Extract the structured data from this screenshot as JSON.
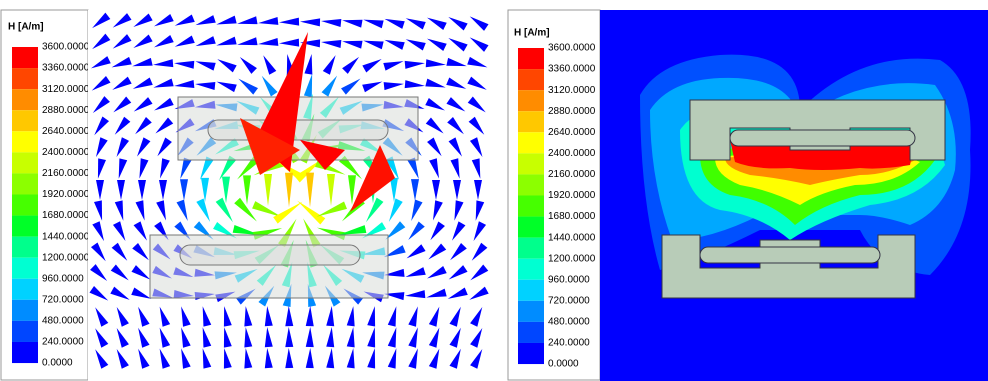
{
  "panels": [
    {
      "legend": {
        "title": "H [A/m]",
        "labels": [
          "3600.0000",
          "3360.0000",
          "3120.0000",
          "2880.0000",
          "2640.0000",
          "2400.0000",
          "2160.0000",
          "1920.0000",
          "1680.0000",
          "1440.0000",
          "1200.0000",
          "960.0000",
          "720.0000",
          "480.0000",
          "240.0000",
          "0.0000"
        ]
      }
    },
    {
      "legend": {
        "title": "H [A/m]",
        "labels": [
          "3600.0000",
          "3360.0000",
          "3120.0000",
          "2880.0000",
          "2640.0000",
          "2400.0000",
          "2160.0000",
          "1920.0000",
          "1680.0000",
          "1440.0000",
          "1200.0000",
          "960.0000",
          "720.0000",
          "480.0000",
          "240.0000",
          "0.0000"
        ]
      }
    }
  ]
}
